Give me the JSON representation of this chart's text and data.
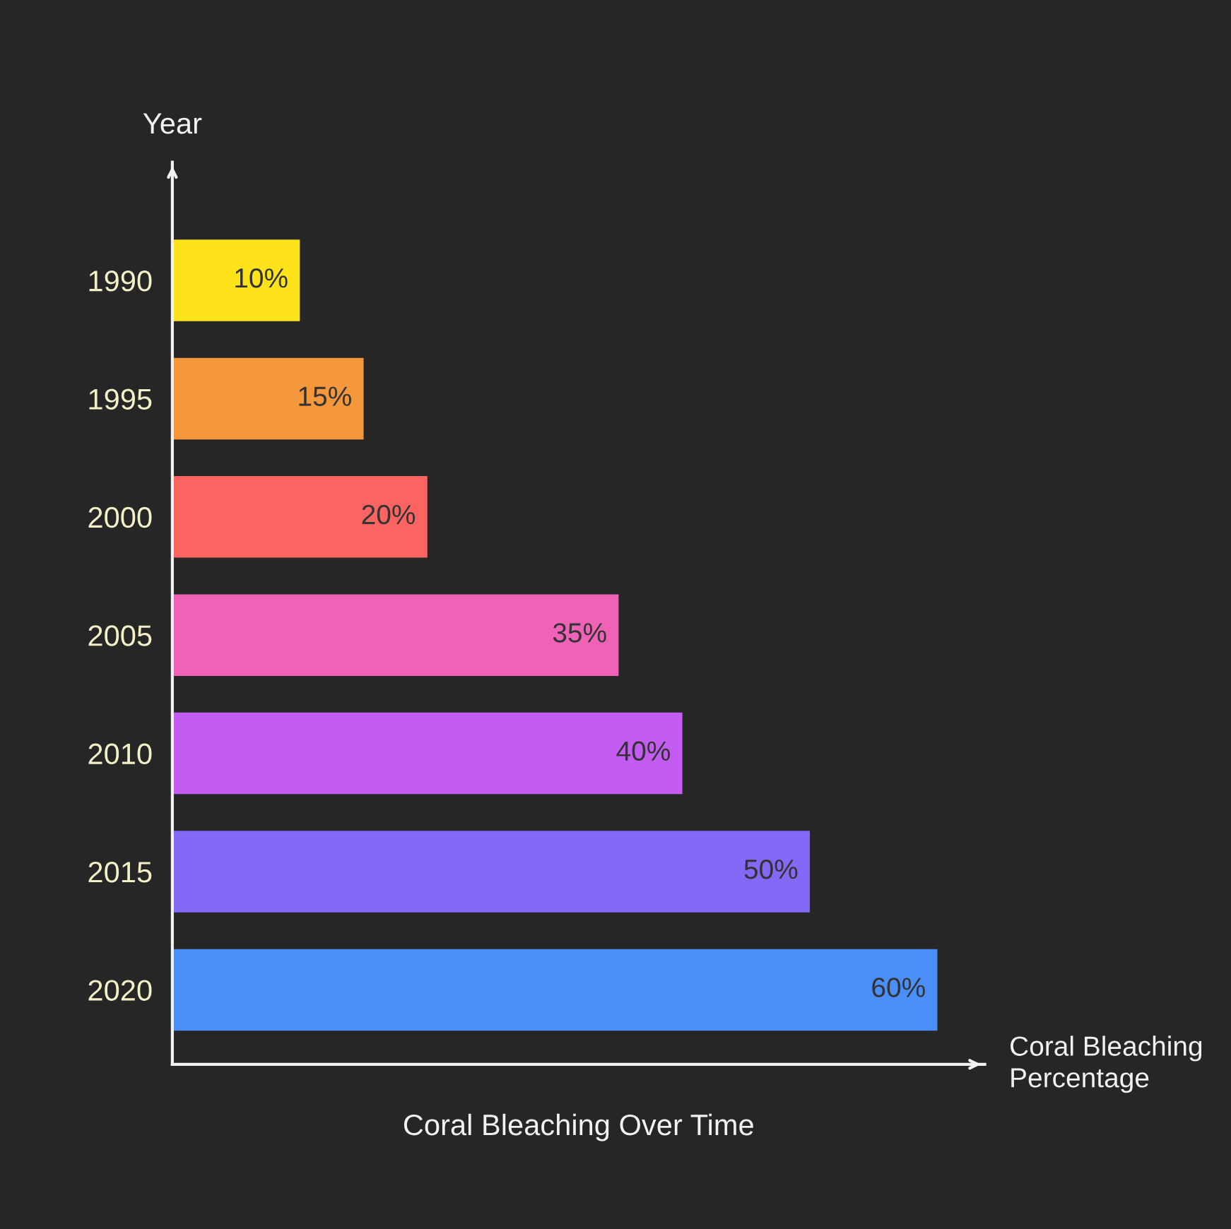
{
  "chart_data": {
    "type": "bar",
    "orientation": "horizontal",
    "title": "Coral Bleaching Over Time",
    "xlabel": "Coral Bleaching\nPercentage",
    "ylabel": "Year",
    "categories": [
      "1990",
      "1995",
      "2000",
      "2005",
      "2010",
      "2015",
      "2020"
    ],
    "values": [
      10,
      15,
      20,
      35,
      40,
      50,
      60
    ],
    "value_labels": [
      "10%",
      "15%",
      "20%",
      "35%",
      "40%",
      "50%",
      "60%"
    ],
    "colors": [
      "#ffe31a",
      "#f5973b",
      "#fc6461",
      "#ef62b6",
      "#c55cf2",
      "#8568f6",
      "#4a8ff8"
    ],
    "grid": false,
    "legend": false
  }
}
